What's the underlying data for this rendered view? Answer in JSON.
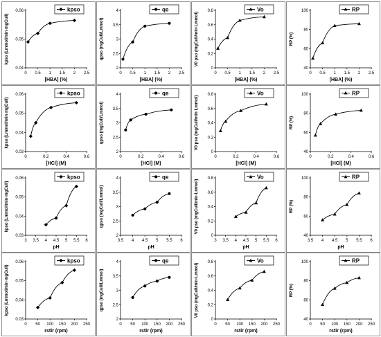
{
  "colors": {
    "line": "#000000",
    "frame": "#8c8c8c",
    "legend_border": "#000000"
  },
  "chart_data": [
    {
      "type": "line",
      "series": [
        {
          "name": "kpso",
          "x": [
            0.1,
            0.5,
            1,
            2
          ],
          "values": [
            0.049,
            0.052,
            0.0555,
            0.0565
          ]
        }
      ],
      "xlabel": "[HBA] (%)",
      "ylabel": "kpso (Lmmol/min·mgCuII)",
      "xlim": [
        0,
        2.5
      ],
      "ylim": [
        0.04,
        0.06
      ],
      "xticks": [
        "0",
        "0.5",
        "1",
        "1.5",
        "2",
        "2.5"
      ],
      "yticks": [
        "0.04",
        "0.05",
        "0.06"
      ],
      "marker": "diamond",
      "legend": "top-right"
    },
    {
      "type": "line",
      "series": [
        {
          "name": "qe",
          "x": [
            0.1,
            0.5,
            1,
            2
          ],
          "values": [
            2.3,
            2.9,
            3.45,
            3.55
          ]
        }
      ],
      "xlabel": "[HBA] (%)",
      "ylabel": "qpso (mgCuII/Lmmol)",
      "xlim": [
        0,
        2.5
      ],
      "ylim": [
        2,
        4
      ],
      "xticks": [
        "0",
        "0.5",
        "1",
        "1.5",
        "2",
        "2.5"
      ],
      "yticks": [
        "2",
        "2.5",
        "3",
        "3.5",
        "4"
      ],
      "marker": "circle",
      "legend": "top-right"
    },
    {
      "type": "line",
      "series": [
        {
          "name": "Vo",
          "x": [
            0.1,
            0.5,
            1,
            2
          ],
          "values": [
            0.27,
            0.42,
            0.66,
            0.71
          ]
        }
      ],
      "xlabel": "[HBA] (%)",
      "ylabel": "V0 pso (mgCuII/min·Lmmol)",
      "xlim": [
        0,
        2.5
      ],
      "ylim": [
        0,
        0.8
      ],
      "xticks": [
        "0",
        "0.5",
        "1",
        "1.5",
        "2",
        "2.5"
      ],
      "yticks": [
        "0",
        "0.2",
        "0.4",
        "0.6",
        "0.8"
      ],
      "marker": "triangle",
      "legend": "top-right"
    },
    {
      "type": "line",
      "series": [
        {
          "name": "RP",
          "x": [
            0.1,
            0.5,
            1,
            2
          ],
          "values": [
            50,
            66,
            84,
            86
          ]
        }
      ],
      "xlabel": "[HBA] (%)",
      "ylabel": "RP (%)",
      "xlim": [
        0,
        2.5
      ],
      "ylim": [
        40,
        100
      ],
      "xticks": [
        "0",
        "0.5",
        "1",
        "1.5",
        "2",
        "2.5"
      ],
      "yticks": [
        "40",
        "60",
        "80",
        "100"
      ],
      "marker": "triangle",
      "legend": "top-right"
    },
    {
      "type": "line",
      "series": [
        {
          "name": "kpso",
          "x": [
            0.05,
            0.1,
            0.25,
            0.5
          ],
          "values": [
            0.038,
            0.045,
            0.053,
            0.0555
          ]
        }
      ],
      "xlabel": "[HCl] (M)",
      "ylabel": "kpso (Lmmol/min·mgCuII)",
      "xlim": [
        0,
        0.6
      ],
      "ylim": [
        0.03,
        0.06
      ],
      "xticks": [
        "0",
        "0.2",
        "0.4",
        "0.6"
      ],
      "yticks": [
        "0.03",
        "0.04",
        "0.05",
        "0.06"
      ],
      "marker": "diamond",
      "legend": "top-right"
    },
    {
      "type": "line",
      "series": [
        {
          "name": "qe",
          "x": [
            0.05,
            0.1,
            0.25,
            0.5
          ],
          "values": [
            2.75,
            3.1,
            3.3,
            3.45
          ]
        }
      ],
      "xlabel": "[HCl] (M)",
      "ylabel": "qpso (mgCuII/Lmmol)",
      "xlim": [
        0,
        0.6
      ],
      "ylim": [
        2,
        4
      ],
      "xticks": [
        "0",
        "0.2",
        "0.4",
        "0.6"
      ],
      "yticks": [
        "2",
        "2.5",
        "3",
        "3.5",
        "4"
      ],
      "marker": "circle",
      "legend": "top-right"
    },
    {
      "type": "line",
      "series": [
        {
          "name": "Vo",
          "x": [
            0.05,
            0.1,
            0.25,
            0.5
          ],
          "values": [
            0.29,
            0.42,
            0.57,
            0.66
          ]
        }
      ],
      "xlabel": "[HCl] (M)",
      "ylabel": "V0 pso (mgCuII/min·Lmmol)",
      "xlim": [
        0,
        0.6
      ],
      "ylim": [
        0,
        0.8
      ],
      "xticks": [
        "0",
        "0.2",
        "0.4",
        "0.6"
      ],
      "yticks": [
        "0",
        "0.2",
        "0.4",
        "0.6",
        "0.8"
      ],
      "marker": "triangle",
      "legend": "top-right"
    },
    {
      "type": "line",
      "series": [
        {
          "name": "RP",
          "x": [
            0.05,
            0.1,
            0.25,
            0.5
          ],
          "values": [
            57,
            69,
            79,
            83
          ]
        }
      ],
      "xlabel": "[HCl] (M)",
      "ylabel": "RP (%)",
      "xlim": [
        0,
        0.6
      ],
      "ylim": [
        40,
        100
      ],
      "xticks": [
        "0",
        "0.2",
        "0.4",
        "0.6"
      ],
      "yticks": [
        "40",
        "60",
        "80",
        "100"
      ],
      "marker": "triangle",
      "legend": "top-right"
    },
    {
      "type": "line",
      "series": [
        {
          "name": "kpso",
          "x": [
            4,
            4.5,
            5,
            5.5
          ],
          "values": [
            0.0355,
            0.039,
            0.0455,
            0.0555
          ]
        }
      ],
      "xlabel": "pH",
      "ylabel": "kpso (Lmmol/min·mgCuII)",
      "xlim": [
        3,
        6
      ],
      "ylim": [
        0.03,
        0.06
      ],
      "xticks": [
        "3",
        "3.5",
        "4",
        "4.5",
        "5",
        "5.5",
        "6"
      ],
      "yticks": [
        "0.03",
        "0.04",
        "0.05",
        "0.06"
      ],
      "marker": "diamond",
      "legend": "top-right"
    },
    {
      "type": "line",
      "series": [
        {
          "name": "qe",
          "x": [
            4,
            4.5,
            5,
            5.5
          ],
          "values": [
            2.7,
            2.92,
            3.15,
            3.45
          ]
        }
      ],
      "xlabel": "pH",
      "ylabel": "qpso (mgCuII/Lmmol)",
      "xlim": [
        3.5,
        6
      ],
      "ylim": [
        2,
        4
      ],
      "xticks": [
        "3.5",
        "4",
        "4.5",
        "5",
        "5.5",
        "6"
      ],
      "yticks": [
        "2",
        "2.5",
        "3",
        "3.5",
        "4"
      ],
      "marker": "circle",
      "legend": "top-right"
    },
    {
      "type": "line",
      "series": [
        {
          "name": "Vo",
          "x": [
            4,
            4.5,
            5,
            5.5
          ],
          "values": [
            0.26,
            0.32,
            0.45,
            0.66
          ]
        }
      ],
      "xlabel": "pH",
      "ylabel": "V0 pso (mgCuII/min·Lmmol)",
      "xlim": [
        3,
        6
      ],
      "ylim": [
        0,
        0.8
      ],
      "xticks": [
        "3",
        "3.5",
        "4",
        "4.5",
        "5",
        "5.5",
        "6"
      ],
      "yticks": [
        "0",
        "0.2",
        "0.4",
        "0.6",
        "0.8"
      ],
      "marker": "triangle",
      "legend": "top-right"
    },
    {
      "type": "line",
      "series": [
        {
          "name": "RP",
          "x": [
            4,
            4.5,
            5,
            5.5
          ],
          "values": [
            56,
            62,
            72,
            84
          ]
        }
      ],
      "xlabel": "pH",
      "ylabel": "RP (%)",
      "xlim": [
        3.5,
        6
      ],
      "ylim": [
        40,
        100
      ],
      "xticks": [
        "3.5",
        "4",
        "4.5",
        "5",
        "5.5",
        "6"
      ],
      "yticks": [
        "40",
        "60",
        "80",
        "100"
      ],
      "marker": "triangle",
      "legend": "top-right"
    },
    {
      "type": "line",
      "series": [
        {
          "name": "kpso",
          "x": [
            50,
            100,
            150,
            200
          ],
          "values": [
            0.036,
            0.041,
            0.049,
            0.0555
          ]
        }
      ],
      "xlabel": "rstir (rpm)",
      "ylabel": "kpso (Lmmol/min·mgCuII)",
      "xlim": [
        0,
        250
      ],
      "ylim": [
        0.03,
        0.06
      ],
      "xticks": [
        "0",
        "50",
        "100",
        "150",
        "200",
        "250"
      ],
      "yticks": [
        "0.03",
        "0.04",
        "0.05",
        "0.06"
      ],
      "marker": "diamond",
      "legend": "top-right"
    },
    {
      "type": "line",
      "series": [
        {
          "name": "qe",
          "x": [
            50,
            100,
            150,
            200
          ],
          "values": [
            2.75,
            3.15,
            3.32,
            3.45
          ]
        }
      ],
      "xlabel": "rstir (rpm)",
      "ylabel": "qpso (mgCuII/Lmmol)",
      "xlim": [
        0,
        250
      ],
      "ylim": [
        2,
        4
      ],
      "xticks": [
        "0",
        "50",
        "100",
        "150",
        "200",
        "250"
      ],
      "yticks": [
        "2",
        "2.5",
        "3",
        "3.5",
        "4"
      ],
      "marker": "circle",
      "legend": "top-right"
    },
    {
      "type": "line",
      "series": [
        {
          "name": "Vo",
          "x": [
            50,
            100,
            150,
            200
          ],
          "values": [
            0.27,
            0.43,
            0.54,
            0.66
          ]
        }
      ],
      "xlabel": "rstir (rpm)",
      "ylabel": "V0 pso (mgCuII/min·Lmmol)",
      "xlim": [
        0,
        250
      ],
      "ylim": [
        0,
        0.8
      ],
      "xticks": [
        "0",
        "50",
        "100",
        "150",
        "200",
        "250"
      ],
      "yticks": [
        "0",
        "0.2",
        "0.4",
        "0.6",
        "0.8"
      ],
      "marker": "triangle",
      "legend": "top-right"
    },
    {
      "type": "line",
      "series": [
        {
          "name": "RP",
          "x": [
            50,
            100,
            150,
            200
          ],
          "values": [
            55,
            72,
            78,
            83
          ]
        }
      ],
      "xlabel": "rstir (rpm)",
      "ylabel": "RP (%)",
      "xlim": [
        0,
        250
      ],
      "ylim": [
        40,
        100
      ],
      "xticks": [
        "0",
        "50",
        "100",
        "150",
        "200",
        "250"
      ],
      "yticks": [
        "40",
        "60",
        "80",
        "100"
      ],
      "marker": "triangle",
      "legend": "top-right"
    }
  ]
}
